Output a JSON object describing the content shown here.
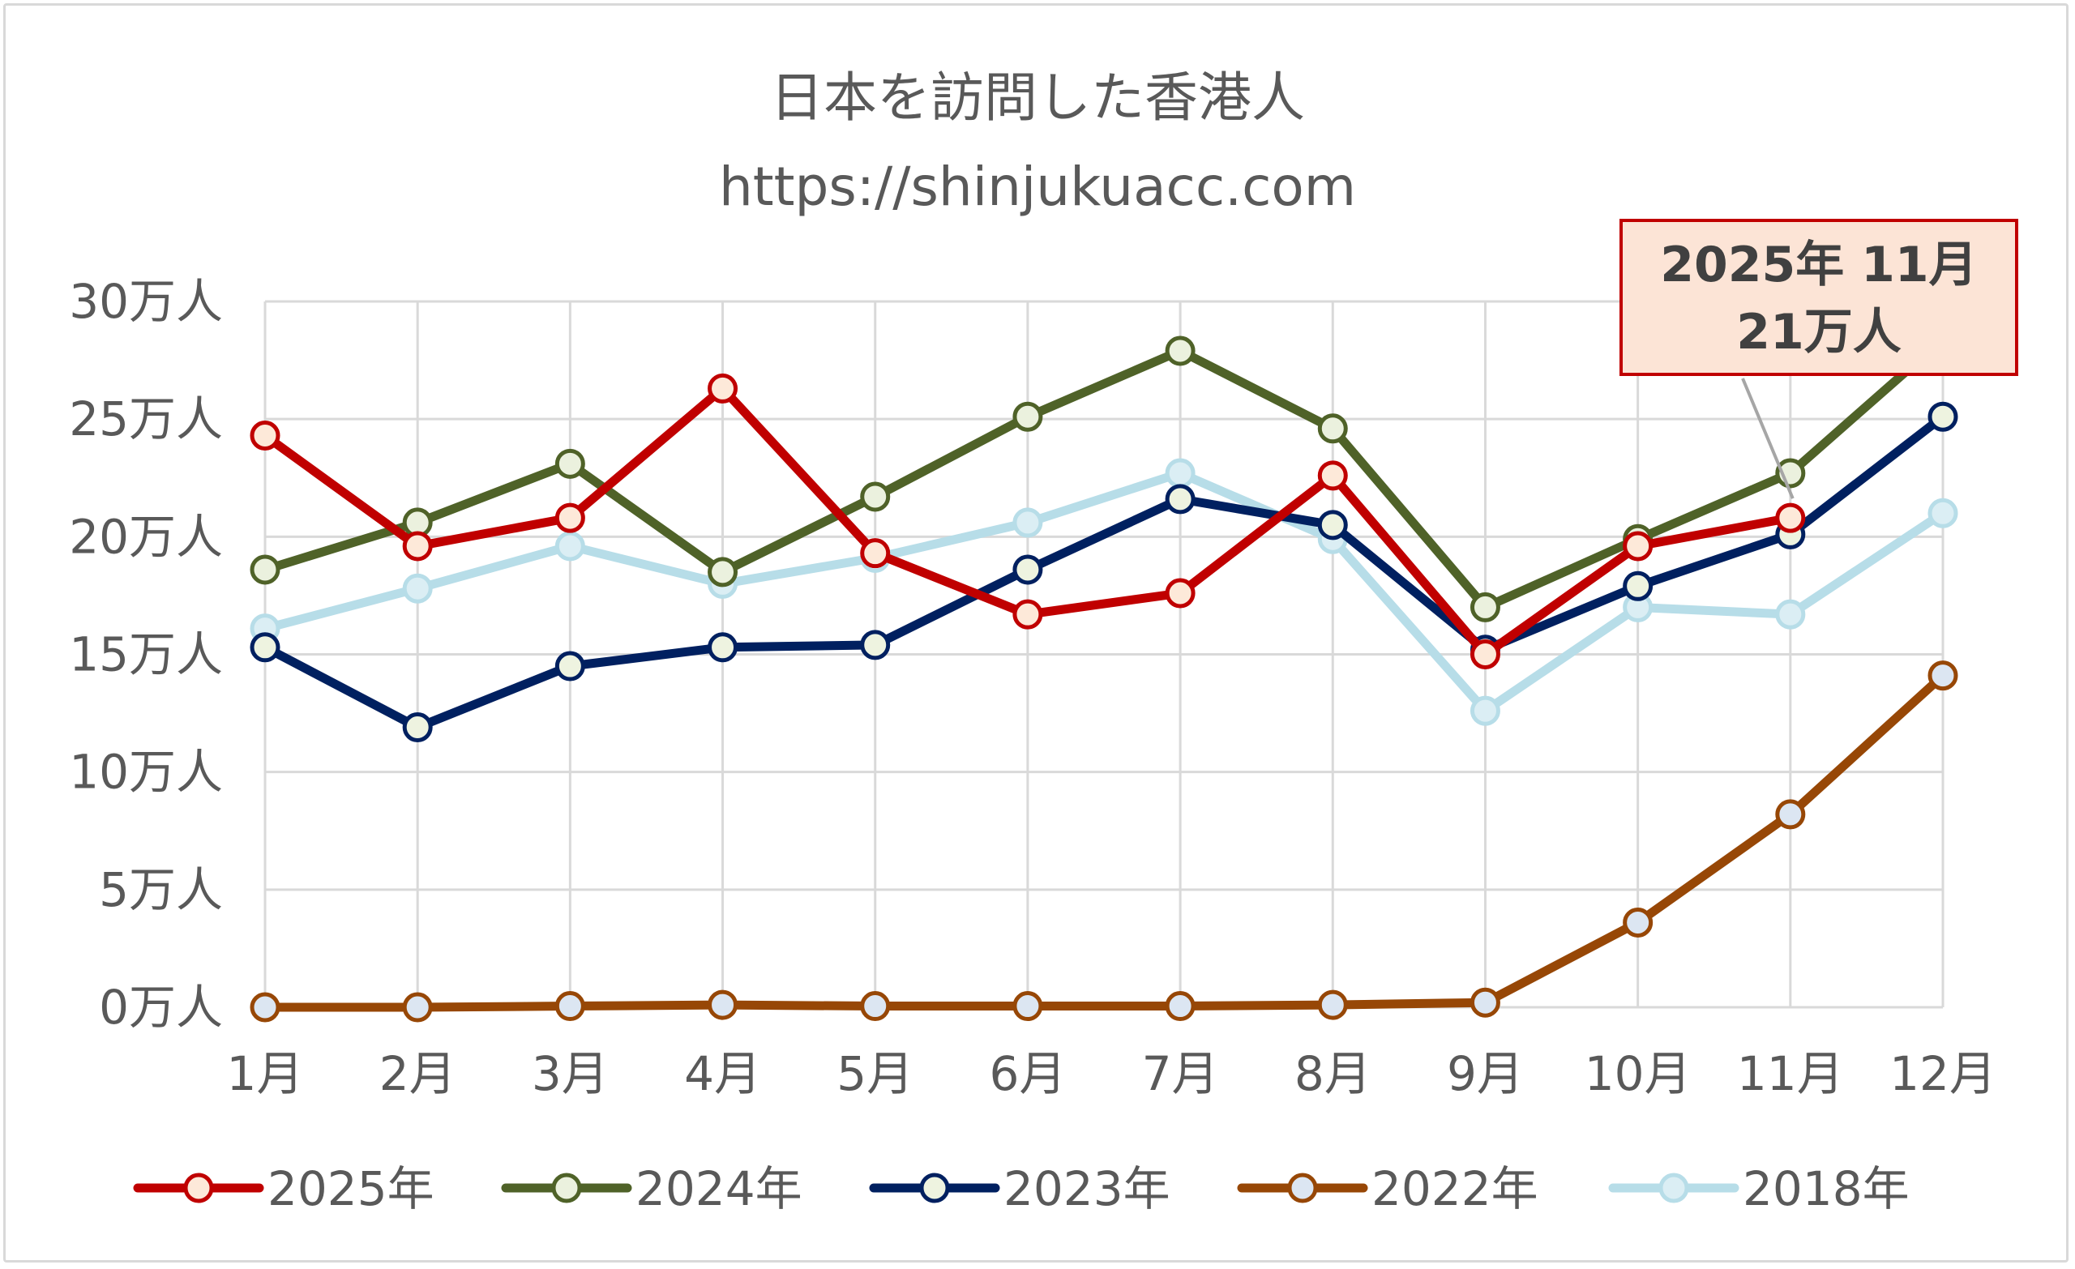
{
  "chart_data": {
    "type": "line",
    "title": "日本を訪問した香港人",
    "subtitle": "https://shinjukuacc.com",
    "categories": [
      "1月",
      "2月",
      "3月",
      "4月",
      "5月",
      "6月",
      "7月",
      "8月",
      "9月",
      "10月",
      "11月",
      "12月"
    ],
    "ylim": [
      0,
      30
    ],
    "yticks": [
      0,
      5,
      10,
      15,
      20,
      25,
      30
    ],
    "ytick_labels": [
      "0万人",
      "5万人",
      "10万人",
      "15万人",
      "20万人",
      "25万人",
      "30万人"
    ],
    "grid": true,
    "legend_position": "bottom",
    "series": [
      {
        "name": "2018年",
        "color": "#b7dde8",
        "marker_fill": "#dbeef4",
        "values": [
          16.1,
          17.8,
          19.6,
          18.0,
          19.1,
          20.6,
          22.7,
          19.9,
          12.6,
          17.0,
          16.7,
          21.0
        ]
      },
      {
        "name": "2022年",
        "color": "#974706",
        "marker_fill": "#dce6f2",
        "values": [
          0.0,
          0.0,
          0.05,
          0.1,
          0.05,
          0.05,
          0.05,
          0.1,
          0.2,
          3.6,
          8.2,
          14.1
        ]
      },
      {
        "name": "2023年",
        "color": "#002060",
        "marker_fill": "#eef3e0",
        "values": [
          15.3,
          11.9,
          14.5,
          15.3,
          15.4,
          18.6,
          21.6,
          20.5,
          15.2,
          17.9,
          20.1,
          25.1
        ]
      },
      {
        "name": "2024年",
        "color": "#4f6228",
        "marker_fill": "#ebf1de",
        "values": [
          18.6,
          20.6,
          23.1,
          18.5,
          21.7,
          25.1,
          27.9,
          24.6,
          17.0,
          19.9,
          22.7,
          28.4
        ]
      },
      {
        "name": "2025年",
        "color": "#c00000",
        "marker_fill": "#fde9d9",
        "values": [
          24.3,
          19.6,
          20.8,
          26.3,
          19.3,
          16.7,
          17.6,
          22.6,
          15.0,
          19.6,
          20.8,
          null
        ]
      }
    ],
    "legend_order": [
      "2025年",
      "2024年",
      "2023年",
      "2022年",
      "2018年"
    ],
    "callout": {
      "line1": "2025年 11月",
      "line2": "21万人",
      "series": "2025年",
      "category": "11月"
    }
  }
}
